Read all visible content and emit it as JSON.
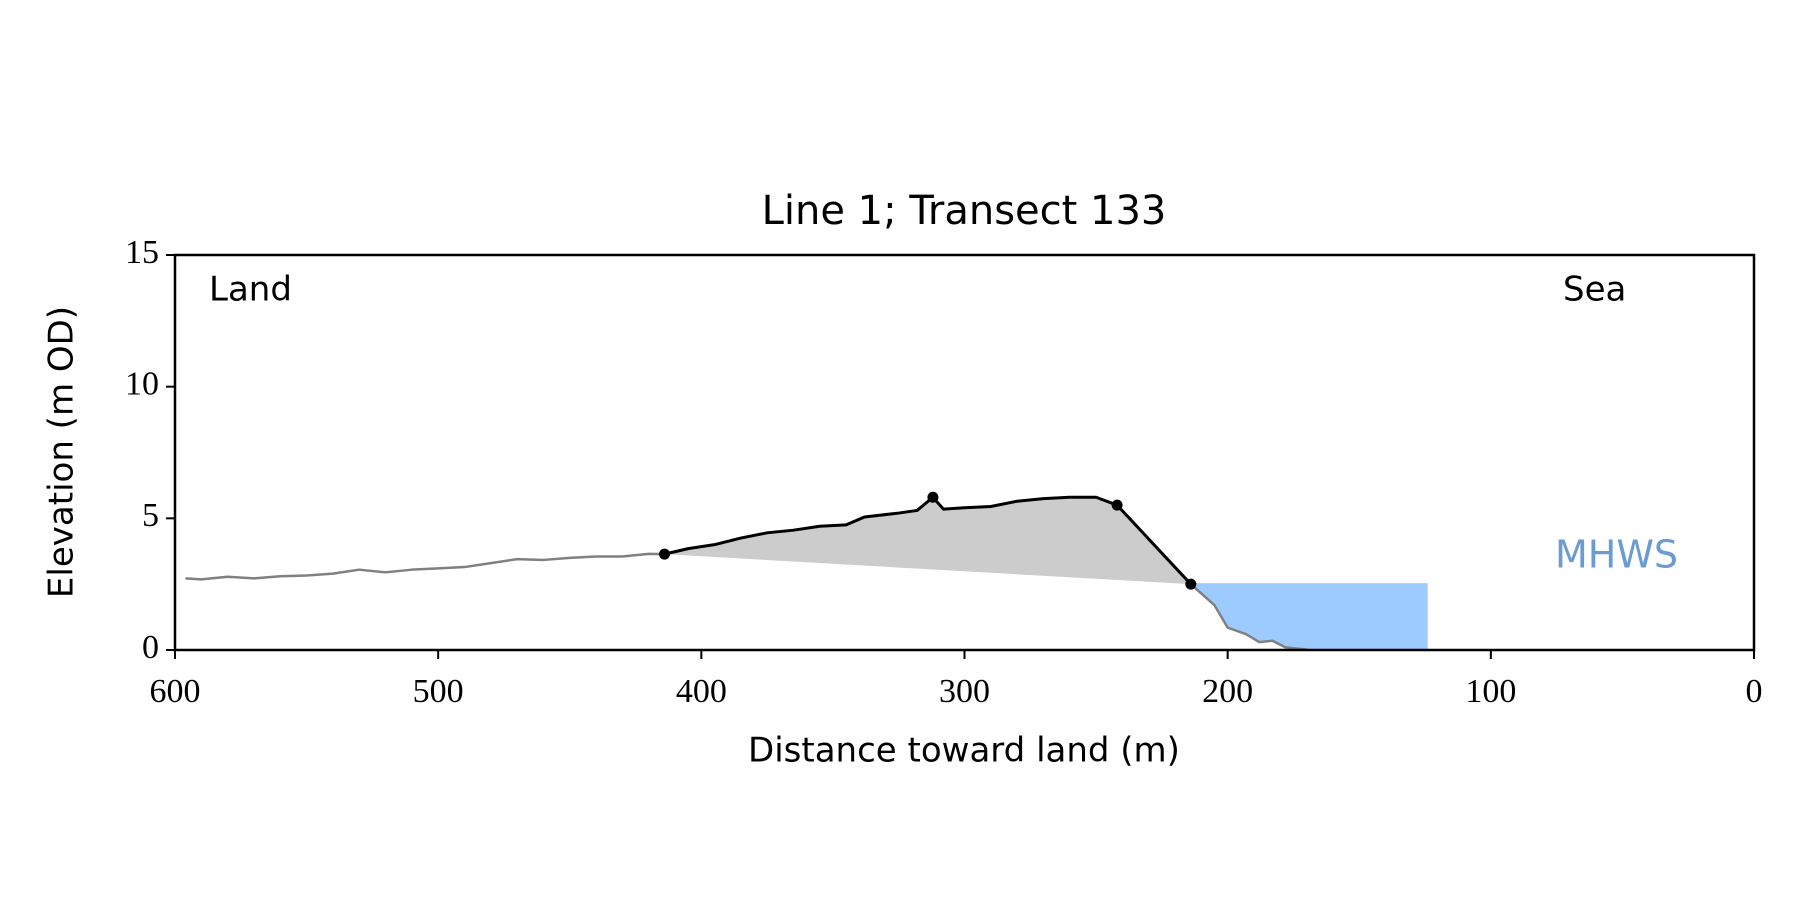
{
  "chart_data": {
    "type": "profile",
    "title": "Line 1; Transect 133",
    "xlabel": "Distance toward land (m)",
    "ylabel": "Elevation (m OD)",
    "xlim": [
      600,
      0
    ],
    "ylim": [
      0,
      15
    ],
    "xticks": [
      600,
      500,
      400,
      300,
      200,
      100,
      0
    ],
    "yticks": [
      0,
      5,
      10,
      15
    ],
    "annotations": [
      "Land",
      "Sea"
    ],
    "series": [
      {
        "color": "#808080",
        "x": [
          596,
          590,
          580,
          570,
          560,
          550,
          540,
          530,
          520,
          510,
          500,
          490,
          480,
          470,
          460,
          450,
          440,
          430,
          420,
          414
        ],
        "values": [
          2.72,
          2.68,
          2.78,
          2.72,
          2.8,
          2.83,
          2.9,
          3.05,
          2.95,
          3.05,
          3.1,
          3.15,
          3.3,
          3.45,
          3.42,
          3.5,
          3.55,
          3.55,
          3.65,
          3.64
        ]
      },
      {
        "color": "#000000",
        "x": [
          414,
          405,
          395,
          385,
          375,
          365,
          355,
          345,
          338,
          325,
          318,
          312,
          308,
          300,
          290,
          280,
          270,
          260,
          250,
          242,
          228,
          214
        ],
        "values": [
          3.64,
          3.85,
          4.0,
          4.25,
          4.45,
          4.55,
          4.7,
          4.75,
          5.05,
          5.2,
          5.3,
          5.8,
          5.35,
          5.4,
          5.45,
          5.65,
          5.75,
          5.8,
          5.8,
          5.5,
          4.0,
          2.5
        ]
      },
      {
        "color": "#808080",
        "x": [
          214,
          205,
          200,
          193,
          188,
          183,
          178,
          170
        ],
        "values": [
          2.5,
          1.7,
          0.85,
          0.6,
          0.3,
          0.35,
          0.1,
          0.02
        ]
      }
    ],
    "dune_fill_color": "#cccccc",
    "markers": {
      "x": [
        414,
        312,
        242,
        214
      ],
      "values": [
        3.64,
        5.8,
        5.5,
        2.5
      ]
    },
    "mhws": {
      "label": "MHWS",
      "level": 2.54,
      "x_extent": [
        214,
        124
      ],
      "color": "#9ecbff",
      "label_color": "#6a9bd1"
    }
  }
}
